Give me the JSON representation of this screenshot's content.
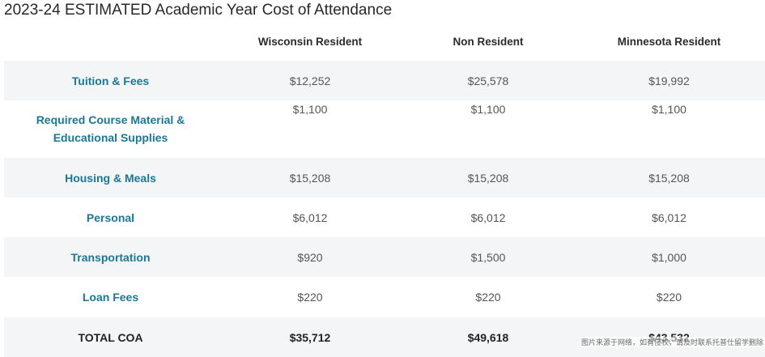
{
  "title": "2023-24 ESTIMATED Academic Year Cost of Attendance",
  "columns": [
    "",
    "Wisconsin Resident",
    "Non Resident",
    "Minnesota Resident"
  ],
  "rows": [
    {
      "label": "Tuition & Fees",
      "values": [
        "$12,252",
        "$25,578",
        "$19,992"
      ]
    },
    {
      "label": "Required Course Material & Educational Supplies",
      "values": [
        "$1,100",
        "$1,100",
        "$1,100"
      ]
    },
    {
      "label": "Housing & Meals",
      "values": [
        "$15,208",
        "$15,208",
        "$15,208"
      ]
    },
    {
      "label": "Personal",
      "values": [
        "$6,012",
        "$6,012",
        "$6,012"
      ]
    },
    {
      "label": "Transportation",
      "values": [
        "$920",
        "$1,500",
        "$1,000"
      ]
    },
    {
      "label": "Loan Fees",
      "values": [
        "$220",
        "$220",
        "$220"
      ]
    },
    {
      "label": "TOTAL COA",
      "values": [
        "$35,712",
        "$49,618",
        "$43,532"
      ]
    }
  ],
  "watermark": "图片来源于网络，如有侵权，请及时联系托普仕留学删除",
  "colors": {
    "label": "#1a7796",
    "stripe": "#f4f5f6",
    "text": "#555555"
  }
}
